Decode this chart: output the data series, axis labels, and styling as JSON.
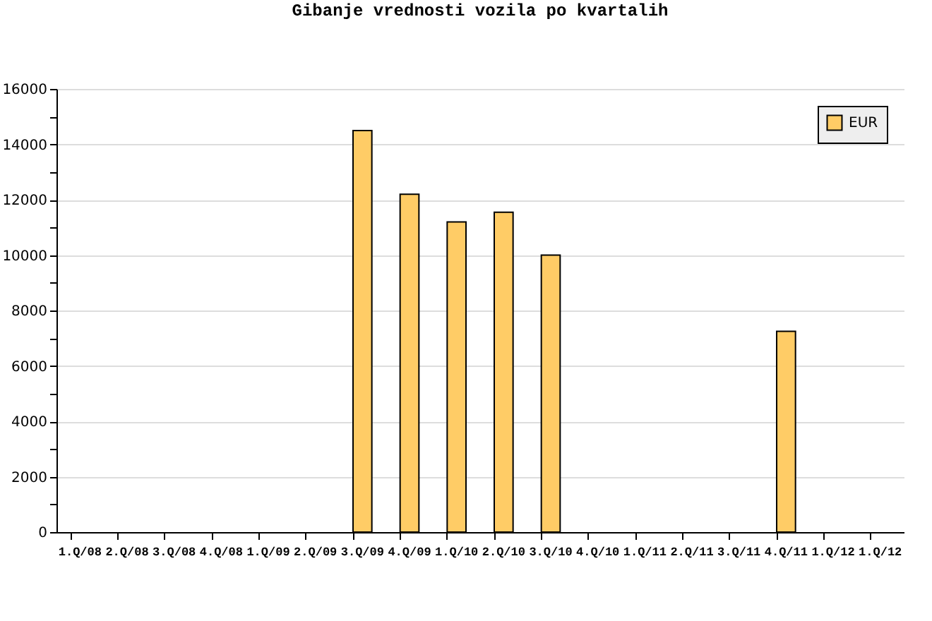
{
  "chart_data": {
    "type": "bar",
    "title": "Gibanje vrednosti vozila po kvartalih",
    "categories": [
      "1.Q/08",
      "2.Q/08",
      "3.Q/08",
      "4.Q/08",
      "1.Q/09",
      "2.Q/09",
      "3.Q/09",
      "4.Q/09",
      "1.Q/10",
      "2.Q/10",
      "3.Q/10",
      "4.Q/10",
      "1.Q/11",
      "2.Q/11",
      "3.Q/11",
      "4.Q/11",
      "1.Q/12",
      "1.Q/12"
    ],
    "series": [
      {
        "name": "EUR",
        "color": "#ffcc66",
        "values": [
          null,
          null,
          null,
          null,
          null,
          null,
          14500,
          12200,
          11200,
          11550,
          10000,
          null,
          null,
          null,
          null,
          7250,
          null,
          null
        ]
      }
    ],
    "ylim": [
      0,
      16000
    ],
    "yticks": [
      0,
      {
        "value": 1000,
        "label": null
      },
      2000,
      {
        "value": 3000,
        "label": null
      },
      4000,
      {
        "value": 5000,
        "label": null
      },
      6000,
      {
        "value": 7000,
        "label": null
      },
      8000,
      {
        "value": 9000,
        "label": null
      },
      10000,
      {
        "value": 11000,
        "label": null
      },
      12000,
      {
        "value": 13000,
        "label": null
      },
      14000,
      {
        "value": 15000,
        "label": null
      },
      16000
    ],
    "grid": "y",
    "legend": "top right"
  }
}
